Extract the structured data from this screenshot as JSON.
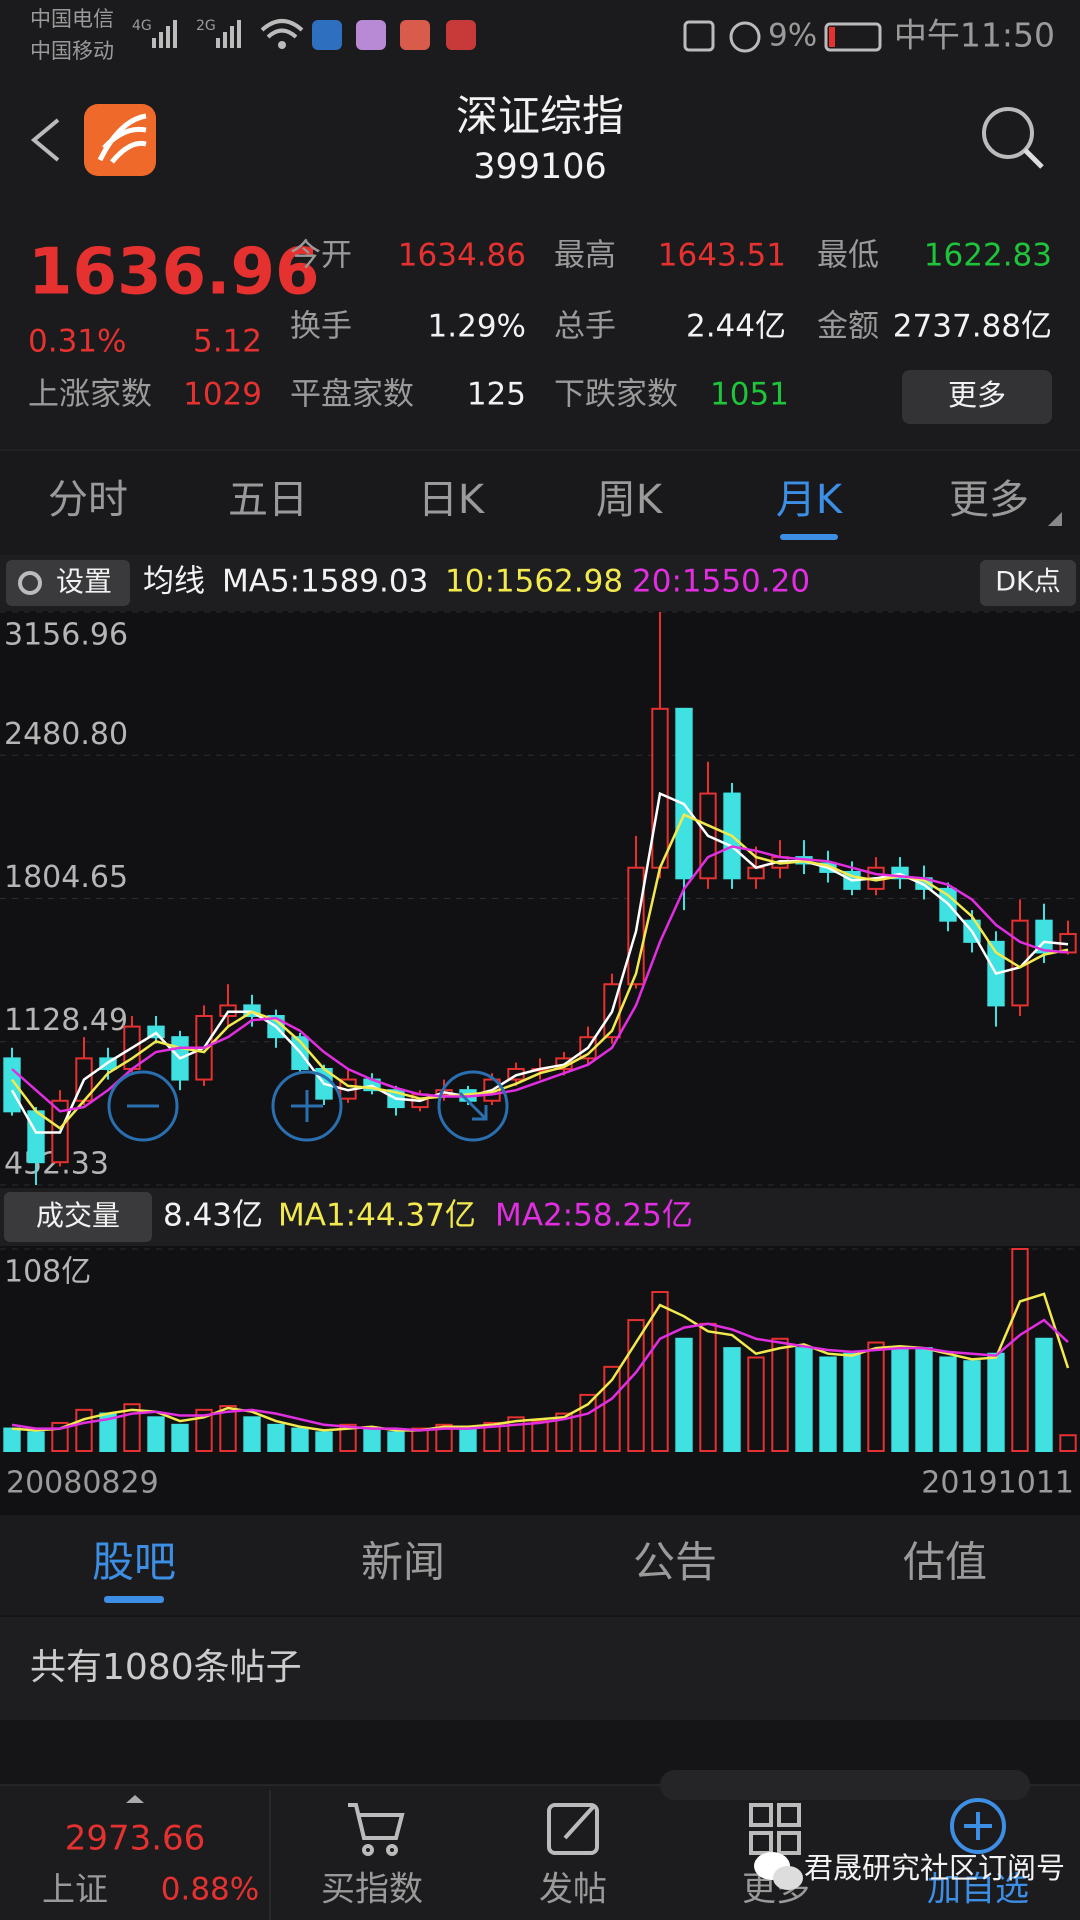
{
  "status_bar": {
    "carrier1": "中国电信",
    "carrier2": "中国移动",
    "net1": "4G",
    "net2": "2G",
    "battery": "9%",
    "time": "中午11:50"
  },
  "header": {
    "title": "深证综指",
    "code": "399106"
  },
  "quote": {
    "price": "1636.96",
    "change_pct": "0.31%",
    "change": "5.12",
    "open_label": "今开",
    "open": "1634.86",
    "high_label": "最高",
    "high": "1643.51",
    "low_label": "最低",
    "low": "1622.83",
    "turnover_label": "换手",
    "turnover": "1.29%",
    "volume_label": "总手",
    "volume": "2.44亿",
    "amount_label": "金额",
    "amount": "2737.88亿",
    "up_label": "上涨家数",
    "up": "1029",
    "flat_label": "平盘家数",
    "flat": "125",
    "down_label": "下跌家数",
    "down": "1051",
    "more": "更多"
  },
  "tabs": [
    "分时",
    "五日",
    "日K",
    "周K",
    "月K",
    "更多"
  ],
  "ma_bar": {
    "settings": "设置",
    "label": "均线",
    "ma5": "MA5:1589.03",
    "ma10": "10:1562.98",
    "ma20": "20:1550.20",
    "dk": "DK点"
  },
  "volume_bar": {
    "label": "成交量",
    "value": "8.43亿",
    "ma1": "MA1:44.37亿",
    "ma2": "MA2:58.25亿"
  },
  "chart_data": [
    {
      "type": "candlestick",
      "up_color": "#e5312f",
      "down_color": "#3fe1e1",
      "grid": true,
      "ylim": [
        452.33,
        3156.96
      ],
      "yticks": [
        452.33,
        1128.49,
        1804.65,
        {
          "value": 2480.8,
          "label": "2480.80"
        },
        3156.96
      ],
      "open": [
        1050,
        800,
        560,
        850,
        1050,
        1000,
        1200,
        1150,
        950,
        1250,
        1300,
        1250,
        1150,
        1000,
        860,
        950,
        900,
        820,
        880,
        900,
        850,
        950,
        1000,
        1000,
        1050,
        1150,
        1400,
        1950,
        2700,
        1900,
        2300,
        1900,
        1950,
        2000,
        1970,
        1930,
        1850,
        1950,
        1900,
        1850,
        1700,
        1600,
        1300,
        1700,
        1550
      ],
      "high": [
        1100,
        820,
        900,
        1150,
        1100,
        1250,
        1250,
        1180,
        1300,
        1400,
        1350,
        1280,
        1170,
        1020,
        1000,
        980,
        920,
        900,
        950,
        920,
        980,
        1030,
        1050,
        1080,
        1200,
        1450,
        2100,
        3156.96,
        2700,
        2450,
        2350,
        2050,
        2080,
        2080,
        2030,
        1980,
        2000,
        2000,
        1960,
        1880,
        1750,
        1650,
        1800,
        1780,
        1700
      ],
      "low": [
        780,
        452.33,
        540,
        830,
        950,
        980,
        1120,
        900,
        920,
        1200,
        1200,
        1100,
        980,
        830,
        840,
        880,
        780,
        800,
        850,
        830,
        830,
        920,
        950,
        970,
        1020,
        1120,
        1380,
        1900,
        1750,
        1850,
        1850,
        1850,
        1900,
        1920,
        1880,
        1820,
        1820,
        1850,
        1800,
        1650,
        1550,
        1200,
        1250,
        1500,
        1540
      ],
      "close": [
        800,
        560,
        850,
        1050,
        1000,
        1200,
        1150,
        950,
        1250,
        1300,
        1250,
        1150,
        1000,
        860,
        950,
        900,
        820,
        880,
        900,
        850,
        950,
        1000,
        1000,
        1050,
        1150,
        1400,
        1950,
        2700,
        1900,
        2300,
        1900,
        1950,
        2000,
        1970,
        1930,
        1850,
        1950,
        1900,
        1850,
        1700,
        1600,
        1300,
        1700,
        1550,
        1636.96
      ],
      "series": [
        {
          "color": "#ffffff",
          "values": [
            900,
            700,
            700,
            950,
            1030,
            1100,
            1170,
            1050,
            1100,
            1270,
            1270,
            1200,
            1080,
            930,
            900,
            920,
            860,
            850,
            890,
            870,
            900,
            970,
            1000,
            1020,
            1100,
            1270,
            1650,
            2300,
            2250,
            2100,
            2050,
            1950,
            1980,
            1980,
            1950,
            1890,
            1900,
            1920,
            1870,
            1780,
            1650,
            1450,
            1480,
            1600,
            1589.03
          ]
        },
        {
          "color": "#f2e94e",
          "values": [
            950,
            800,
            720,
            850,
            980,
            1050,
            1130,
            1100,
            1080,
            1200,
            1270,
            1230,
            1130,
            1000,
            920,
            910,
            890,
            860,
            870,
            880,
            890,
            930,
            980,
            1010,
            1070,
            1180,
            1450,
            1950,
            2200,
            2150,
            2100,
            2000,
            1970,
            1980,
            1960,
            1910,
            1890,
            1910,
            1890,
            1820,
            1720,
            1550,
            1480,
            1540,
            1562.98
          ]
        },
        {
          "color": "#e02ee0",
          "values": [
            1000,
            900,
            800,
            820,
            900,
            1000,
            1080,
            1100,
            1100,
            1150,
            1230,
            1240,
            1180,
            1080,
            1000,
            950,
            910,
            880,
            870,
            870,
            880,
            900,
            940,
            980,
            1020,
            1100,
            1300,
            1600,
            1850,
            2000,
            2050,
            2030,
            2000,
            1990,
            1980,
            1950,
            1920,
            1910,
            1900,
            1870,
            1800,
            1680,
            1600,
            1560,
            1550.2
          ]
        }
      ]
    },
    {
      "type": "bar",
      "grid": true,
      "ylim": [
        0,
        108
      ],
      "yticks": [
        {
          "value": 108,
          "label": "108亿"
        }
      ],
      "start_label": "20080829",
      "end_label": "20191011",
      "values": [
        12,
        10,
        15,
        22,
        20,
        25,
        18,
        14,
        22,
        24,
        18,
        14,
        12,
        10,
        14,
        12,
        10,
        12,
        14,
        12,
        15,
        18,
        16,
        20,
        30,
        45,
        70,
        85,
        60,
        68,
        55,
        50,
        60,
        55,
        50,
        52,
        58,
        55,
        55,
        50,
        48,
        52,
        108,
        60,
        8.43
      ],
      "series": [
        {
          "color": "#f2e94e",
          "values": [
            12,
            11,
            12,
            17,
            20,
            22,
            21,
            16,
            18,
            23,
            21,
            16,
            13,
            11,
            12,
            13,
            11,
            11,
            13,
            13,
            14,
            16,
            17,
            18,
            25,
            38,
            58,
            78,
            72,
            64,
            62,
            52,
            55,
            57,
            52,
            51,
            55,
            56,
            55,
            52,
            49,
            50,
            80,
            84,
            44.37
          ]
        },
        {
          "color": "#e02ee0",
          "values": [
            14,
            12,
            12,
            15,
            17,
            20,
            21,
            19,
            19,
            21,
            22,
            20,
            17,
            14,
            13,
            12,
            12,
            11,
            12,
            12,
            13,
            14,
            15,
            17,
            20,
            28,
            42,
            60,
            66,
            68,
            65,
            60,
            58,
            56,
            54,
            53,
            54,
            55,
            55,
            53,
            52,
            51,
            62,
            70,
            58.25
          ]
        }
      ]
    }
  ],
  "news_tabs": [
    "股吧",
    "新闻",
    "公告",
    "估值"
  ],
  "posts": "共有1080条帖子",
  "bottom_nav": {
    "index_value": "2973.66",
    "index_name": "上证",
    "index_change": "0.88%",
    "items": [
      "买指数",
      "发帖",
      "更多",
      "加自选"
    ],
    "watermark": "君晟研究社区订阅号"
  }
}
